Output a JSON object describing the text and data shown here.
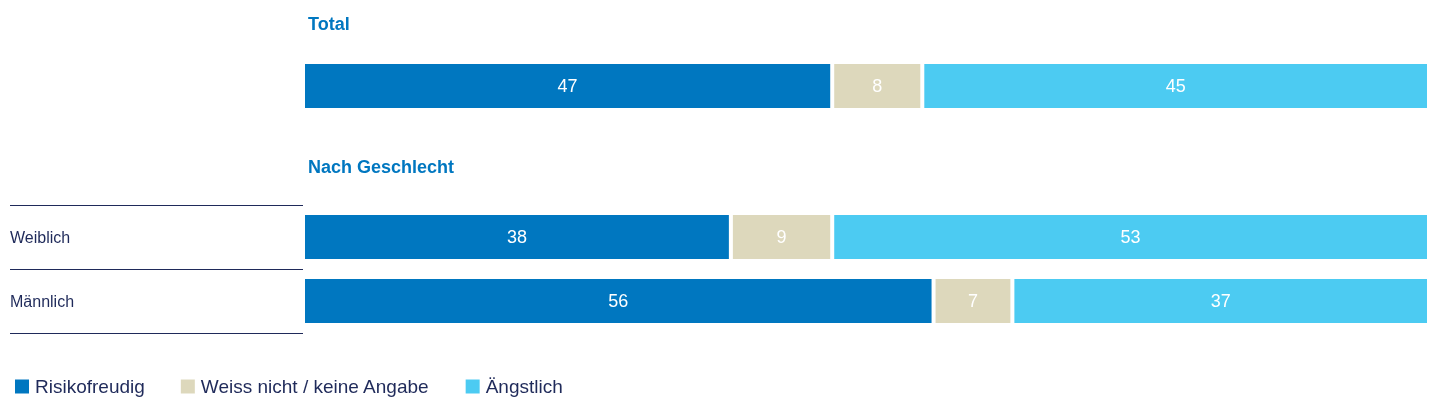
{
  "chart_data": [
    {
      "type": "bar",
      "title": "Total",
      "orientation": "horizontal",
      "stacked": true,
      "categories": [
        null
      ],
      "xlim": [
        0,
        100
      ],
      "tick_labels": false,
      "grid": false,
      "legend": false,
      "data_labels": true,
      "series": [
        {
          "color": "#0077c0",
          "values": [
            47
          ]
        },
        {
          "color": "#ddd8bc",
          "values": [
            8
          ]
        },
        {
          "color": "#4ccbf2",
          "values": [
            45
          ]
        }
      ]
    },
    {
      "type": "bar",
      "title": "Nach Geschlecht",
      "orientation": "horizontal",
      "stacked": true,
      "categories": [
        "Weiblich",
        "Männlich"
      ],
      "xlim": [
        0,
        100
      ],
      "tick_labels": "y",
      "grid": false,
      "legend": "bottom left",
      "data_labels": true,
      "series": [
        {
          "name": "Risikofreudig",
          "color": "#0077c0",
          "values": [
            38,
            56
          ]
        },
        {
          "name": "Weiss nicht / keine Angabe",
          "color": "#ddd8bc",
          "values": [
            9,
            7
          ]
        },
        {
          "name": "Ängstlich",
          "color": "#4ccbf2",
          "values": [
            53,
            37
          ]
        }
      ]
    }
  ]
}
